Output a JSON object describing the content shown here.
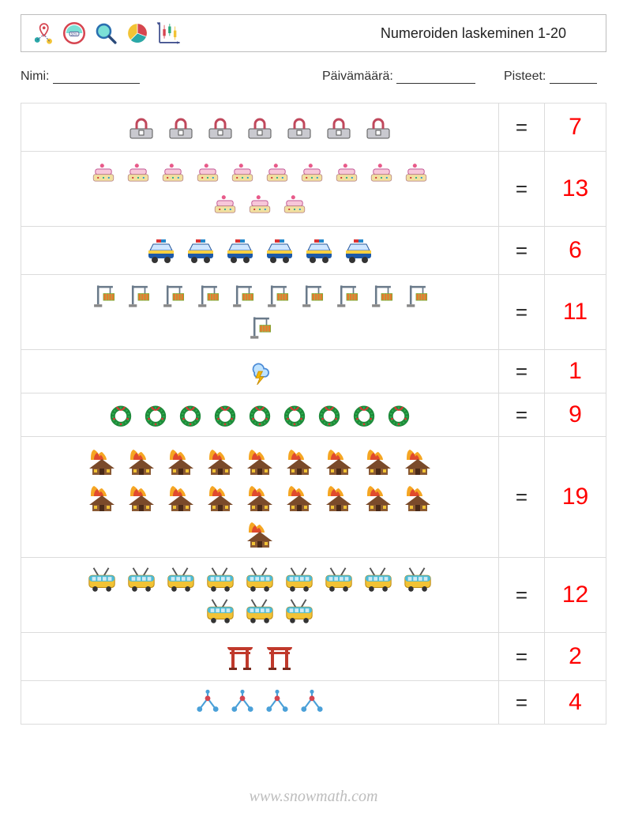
{
  "title": "Numeroiden laskeminen 1-20",
  "meta": {
    "name_label": "Nimi:",
    "date_label": "Päivämäärä:",
    "score_label": "Pisteet:"
  },
  "equals": "=",
  "answer_color": "#ff0000",
  "header_icons": [
    {
      "name": "map-pin-dots-icon"
    },
    {
      "name": "gauge-badge-icon"
    },
    {
      "name": "magnifier-icon"
    },
    {
      "name": "pie-chart-icon"
    },
    {
      "name": "candlestick-chart-icon"
    }
  ],
  "rows": [
    {
      "icon": "bag-lock-icon",
      "count": 7,
      "answer": "7",
      "size": "big",
      "max_per_line": 10
    },
    {
      "icon": "cake-icon",
      "count": 13,
      "answer": "13",
      "size": "",
      "max_per_line": 10
    },
    {
      "icon": "police-car-icon",
      "count": 6,
      "answer": "6",
      "size": "big",
      "max_per_line": 10
    },
    {
      "icon": "crane-icon",
      "count": 11,
      "answer": "11",
      "size": "",
      "max_per_line": 10
    },
    {
      "icon": "storm-cloud-icon",
      "count": 1,
      "answer": "1",
      "size": "",
      "max_per_line": 10
    },
    {
      "icon": "wreath-icon",
      "count": 9,
      "answer": "9",
      "size": "",
      "max_per_line": 10
    },
    {
      "icon": "house-fire-icon",
      "count": 19,
      "answer": "19",
      "size": "big",
      "max_per_line": 10
    },
    {
      "icon": "trolleybus-icon",
      "count": 12,
      "answer": "12",
      "size": "w",
      "max_per_line": 10
    },
    {
      "icon": "torii-icon",
      "count": 2,
      "answer": "2",
      "size": "big",
      "max_per_line": 10
    },
    {
      "icon": "molecule-icon",
      "count": 4,
      "answer": "4",
      "size": "",
      "max_per_line": 10
    }
  ],
  "footer": "www.snowmath.com"
}
